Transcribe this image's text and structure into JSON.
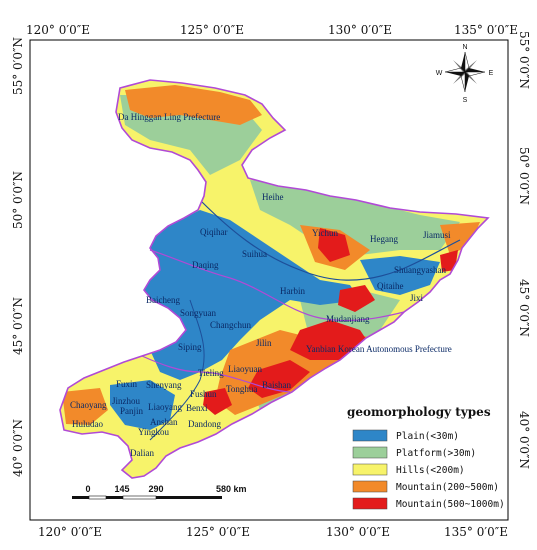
{
  "map": {
    "lon_labels": [
      "120° 0′0″E",
      "125° 0′0″E",
      "130° 0′0″E",
      "135° 0′0″E"
    ],
    "lat_labels": [
      "55° 0′0″N",
      "50° 0′0″N",
      "45° 0′0″N",
      "40° 0′0″N"
    ],
    "cities": [
      "Da Hinggan Ling Prefecture",
      "Heihe",
      "Qiqihar",
      "Yichun",
      "Hegang",
      "Jiamusi",
      "Suihua",
      "Daqing",
      "Shuangyashan",
      "Harbin",
      "Qitaihe",
      "Jixi",
      "Baicheng",
      "Songyuan",
      "Mudanjiang",
      "Changchun",
      "Jilin",
      "Yanbian Korean Autonomous Prefecture",
      "Siping",
      "Liaoyuan",
      "Tieling",
      "Fuxin",
      "Shenyang",
      "Tonghua",
      "Baishan",
      "Fushun",
      "Chaoyang",
      "Jinzhou",
      "Panjin",
      "Liaoyang",
      "Benxi",
      "Anshan",
      "Huludao",
      "Yingkou",
      "Dandong",
      "Dalian"
    ],
    "compass": {
      "north": "N",
      "south": "S",
      "east": "E",
      "west": "W"
    },
    "scale_bar": {
      "ticks": [
        "0",
        "145",
        "290"
      ],
      "end_label": "580 km"
    }
  },
  "legend": {
    "title": "geomorphology types",
    "items": [
      {
        "label": "Plain(<30m)",
        "color": "#2e86c8"
      },
      {
        "label": "Platform(>30m)",
        "color": "#9ccf9a"
      },
      {
        "label": "Hills(<200m)",
        "color": "#f7f36a"
      },
      {
        "label": "Mountain(200~500m)",
        "color": "#f28a2a"
      },
      {
        "label": "Mountain(500~1000m)",
        "color": "#e31b1b"
      }
    ]
  },
  "colors": {
    "boundary": "#b04ad6",
    "frame": "#000000"
  }
}
